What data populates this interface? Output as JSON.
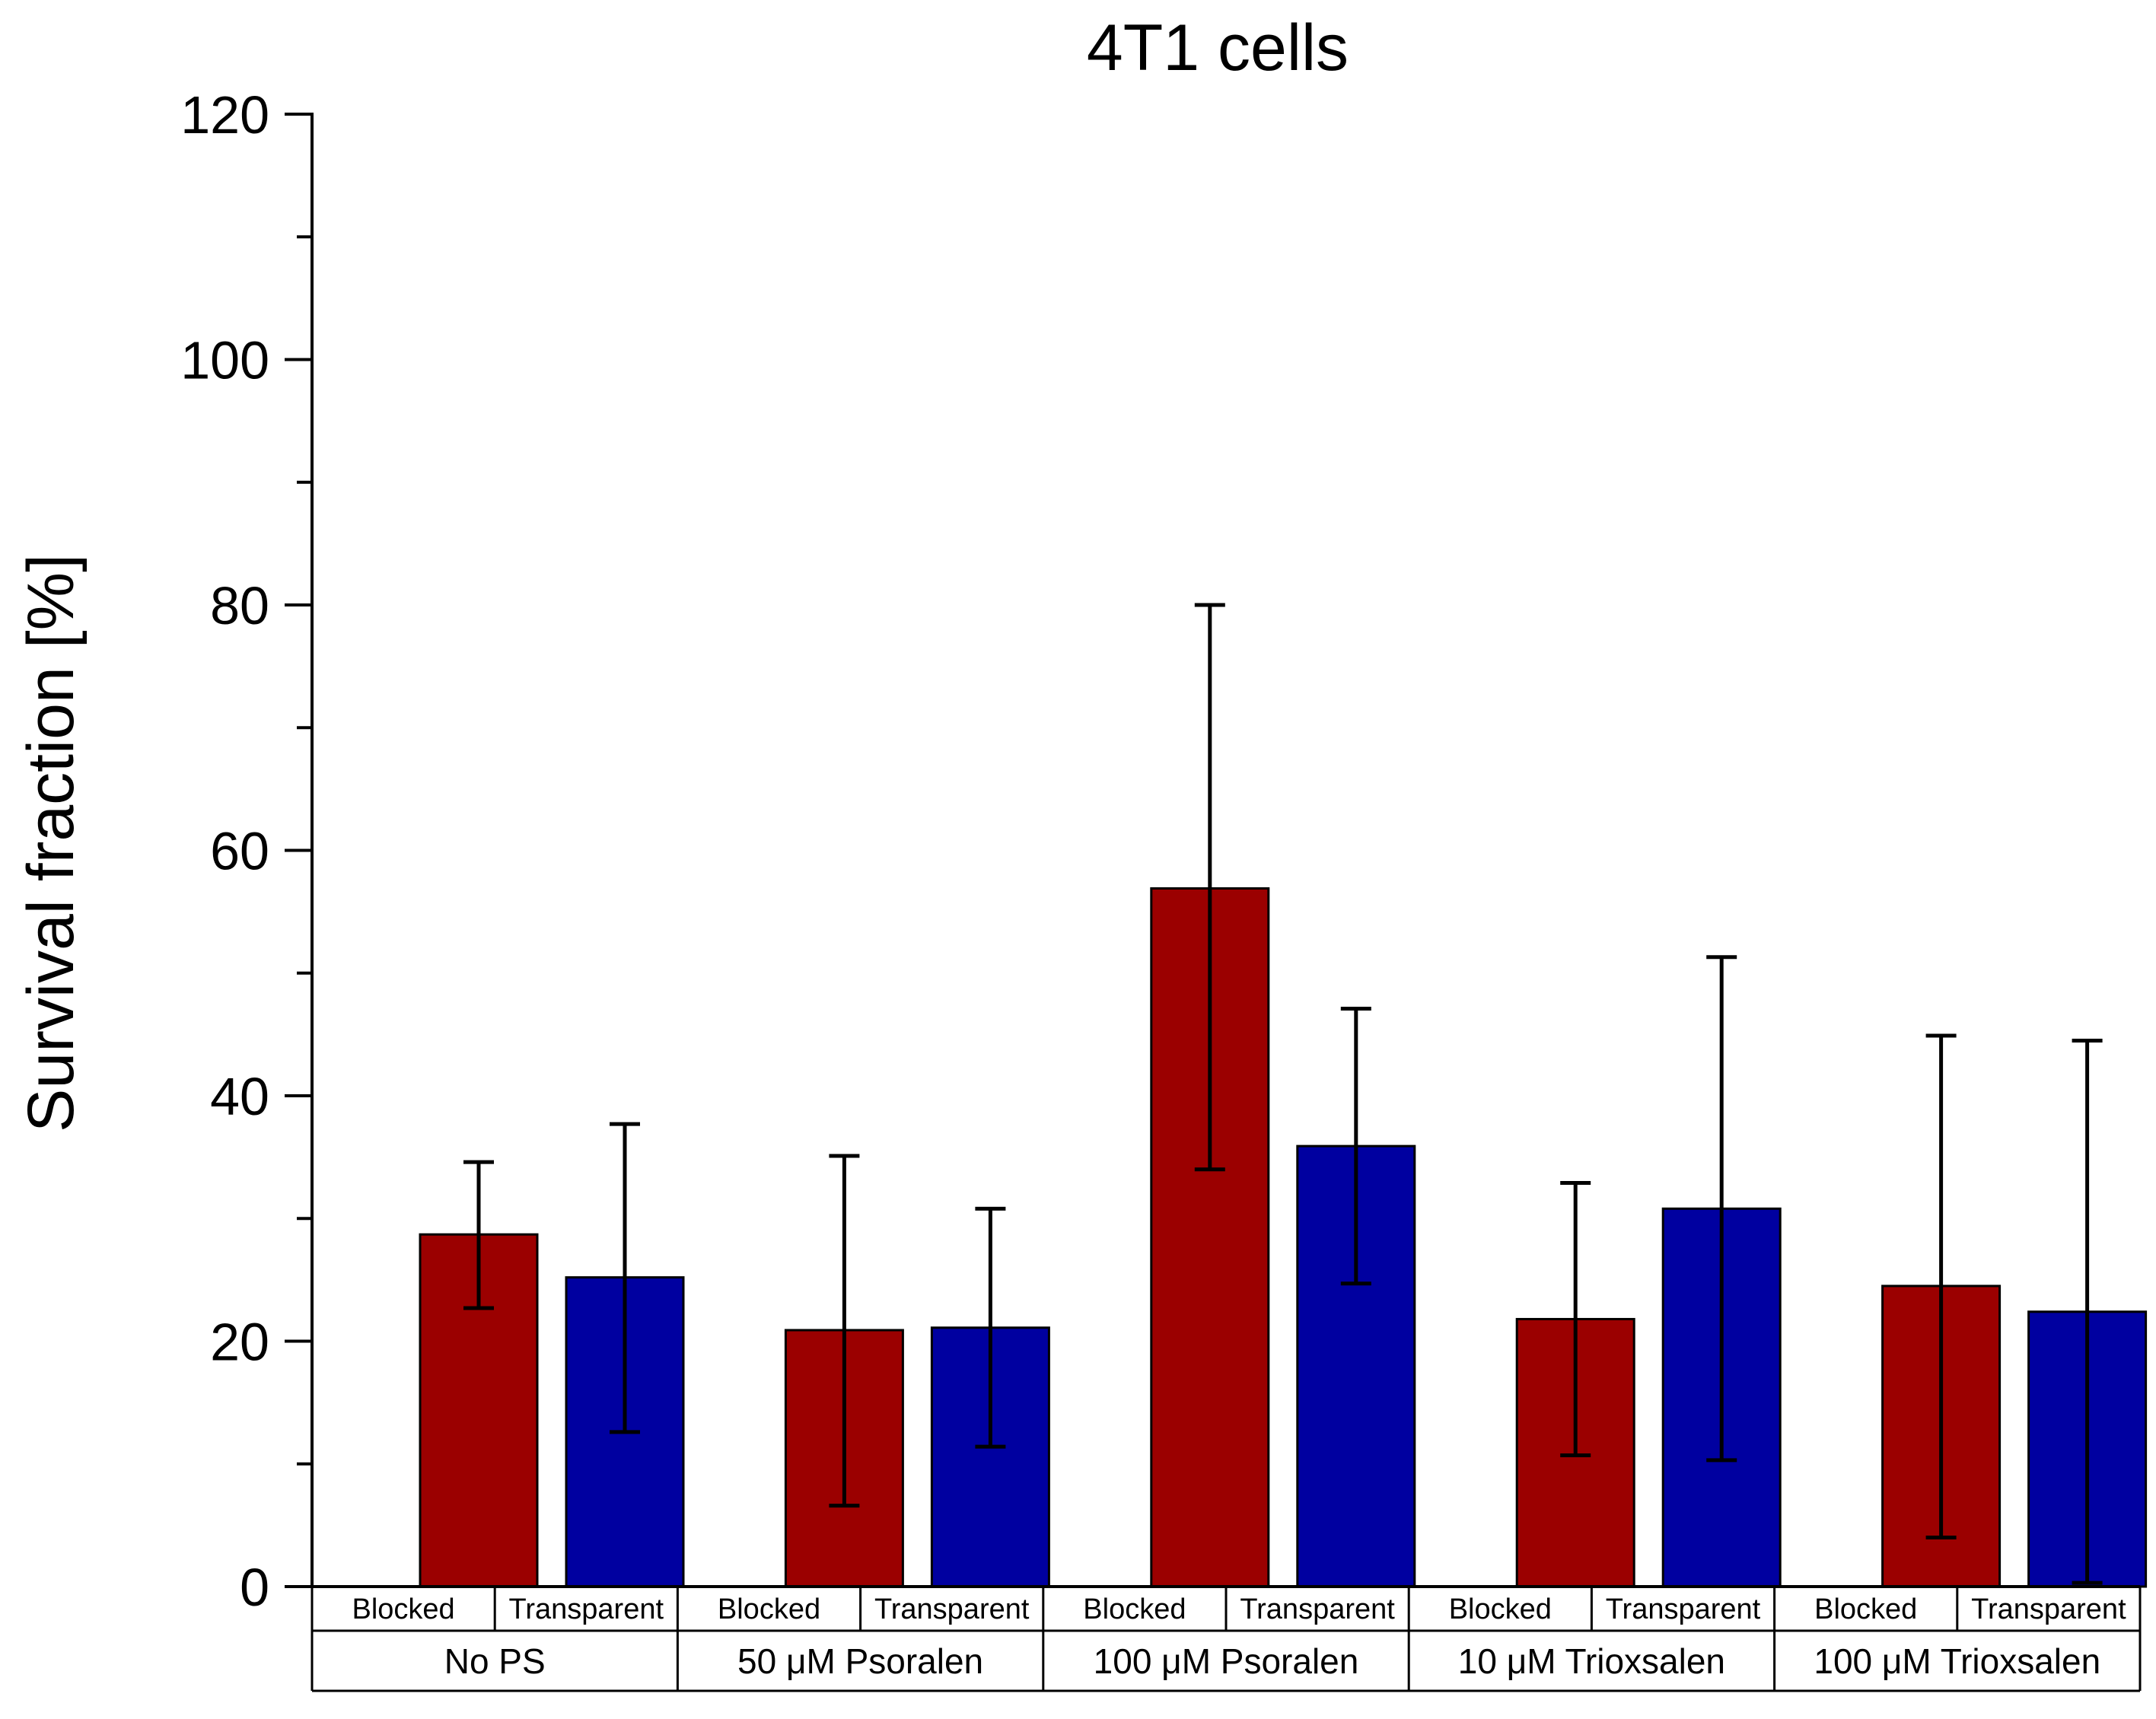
{
  "chart_data": {
    "type": "bar",
    "title": "4T1 cells",
    "xlabel": "",
    "ylabel": "Survival fraction [%]",
    "ylim": [
      0,
      120
    ],
    "y_ticks": [
      "0",
      "20",
      "40",
      "60",
      "80",
      "100",
      "120"
    ],
    "grid": false,
    "legend": "none",
    "groups": [
      "No PS",
      "50 μM Psoralen",
      "100 μM Psoralen",
      "10 μM Trioxsalen",
      "100 μM Trioxsalen"
    ],
    "conditions": [
      "Blocked",
      "Transparent"
    ],
    "series": [
      {
        "name": "Blocked",
        "color": "#9b0000",
        "values": [
          28.7,
          20.9,
          56.9,
          21.8,
          24.5
        ],
        "error_low": [
          22.7,
          6.6,
          34.0,
          10.7,
          4.0
        ],
        "error_high": [
          34.6,
          35.1,
          80.0,
          32.9,
          44.9
        ]
      },
      {
        "name": "Transparent",
        "color": "#0000a0",
        "values": [
          25.2,
          21.1,
          35.9,
          30.8,
          22.4
        ],
        "error_low": [
          12.6,
          11.4,
          24.7,
          10.3,
          0.3
        ],
        "error_high": [
          37.7,
          30.8,
          47.1,
          51.3,
          44.5
        ]
      }
    ]
  }
}
